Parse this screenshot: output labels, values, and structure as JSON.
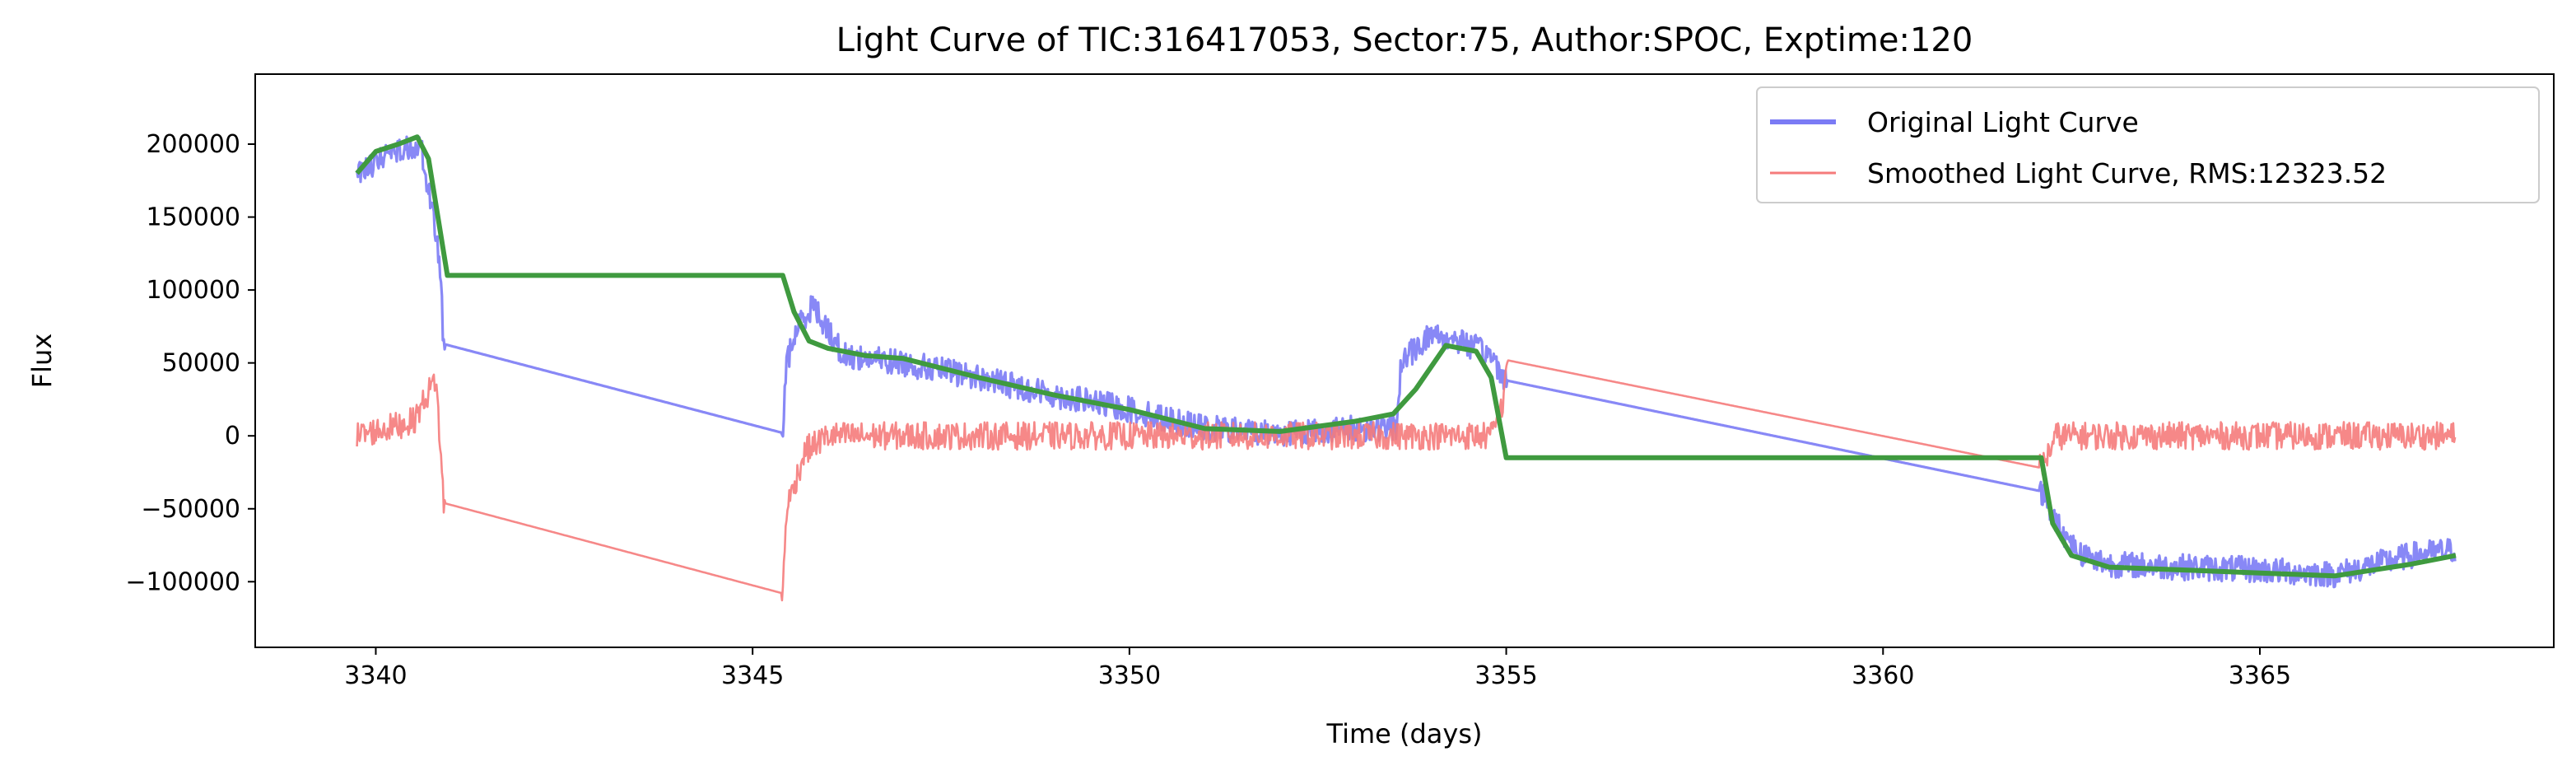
{
  "chart_data": {
    "type": "line",
    "title": "Light Curve of TIC:316417053, Sector:75, Author:SPOC, Exptime:120",
    "xlabel": "Time (days)",
    "ylabel": "Flux",
    "xlim": [
      3338.4,
      3368.9
    ],
    "ylim": [
      -145000,
      248000
    ],
    "xticks": [
      3340,
      3345,
      3350,
      3355,
      3360,
      3365
    ],
    "xtick_labels": [
      "3340",
      "3345",
      "3350",
      "3355",
      "3360",
      "3365"
    ],
    "yticks": [
      200000,
      150000,
      100000,
      50000,
      0,
      -50000,
      -100000
    ],
    "ytick_labels": [
      "200000",
      "150000",
      "100000",
      "50000",
      "0",
      "−50000",
      "−100000"
    ],
    "legend": {
      "placement": "top-right",
      "entries": [
        {
          "label": "Original Light Curve",
          "color": "#7b7bf5"
        },
        {
          "label": "Smoothed Light Curve, RMS:12323.52",
          "color": "#f57b7b"
        }
      ]
    },
    "series": [
      {
        "key": "original",
        "color": "#7b7bf5",
        "noise": 9000,
        "x": [
          3339.75,
          3340.2,
          3340.6,
          3340.85,
          3340.9,
          3345.4,
          3345.45,
          3345.6,
          3345.8,
          3346.2,
          3347,
          3348,
          3349,
          3350,
          3351,
          3352,
          3353,
          3353.55,
          3353.6,
          3354,
          3354.4,
          3354.8,
          3355.0,
          3362.1,
          3362.3,
          3362.6,
          3363,
          3364,
          3365,
          3366,
          3367,
          3367.6
        ],
        "y": [
          180000,
          195000,
          200000,
          120000,
          63000,
          2000,
          50000,
          75000,
          90000,
          55000,
          50000,
          40000,
          28000,
          18000,
          5000,
          2000,
          5000,
          5000,
          50000,
          70000,
          65000,
          55000,
          38000,
          -38000,
          -60000,
          -80000,
          -88000,
          -90000,
          -92000,
          -95000,
          -82000,
          -78000
        ]
      },
      {
        "key": "residual",
        "color": "#f57b7b",
        "noise": 9500,
        "x": [
          3339.75,
          3340.5,
          3340.8,
          3340.9,
          3345.4,
          3345.45,
          3345.7,
          3346,
          3347,
          3348,
          3349,
          3350,
          3351,
          3352,
          3353,
          3353.55,
          3353.6,
          3354.8,
          3354.95,
          3355.0,
          3362.1,
          3362.3,
          3363,
          3364,
          3365,
          3366,
          3367.6
        ],
        "y": [
          0,
          10000,
          40000,
          -46000,
          -108000,
          -50000,
          -10000,
          0,
          0,
          0,
          0,
          0,
          0,
          0,
          0,
          0,
          0,
          0,
          20000,
          52000,
          -22000,
          0,
          0,
          0,
          0,
          0,
          0
        ]
      },
      {
        "key": "trend",
        "color": "#3f9a3f",
        "x": [
          3339.75,
          3340.0,
          3340.3,
          3340.55,
          3340.7,
          3340.95,
          3345.4,
          3345.55,
          3345.75,
          3346.0,
          3346.5,
          3347,
          3348,
          3349,
          3350,
          3351,
          3352,
          3353,
          3353.5,
          3353.8,
          3354.2,
          3354.6,
          3354.8,
          3355.0,
          3362.1,
          3362.25,
          3362.5,
          3363,
          3364,
          3365,
          3366,
          3367,
          3367.6
        ],
        "y": [
          180000,
          195000,
          200000,
          205000,
          190000,
          110000,
          110000,
          85000,
          65000,
          60000,
          55000,
          53000,
          40000,
          28000,
          18000,
          5000,
          3000,
          10000,
          15000,
          32000,
          62000,
          58000,
          40000,
          -15000,
          -15000,
          -60000,
          -82000,
          -90000,
          -92000,
          -94000,
          -96000,
          -88000,
          -82000
        ]
      }
    ]
  }
}
